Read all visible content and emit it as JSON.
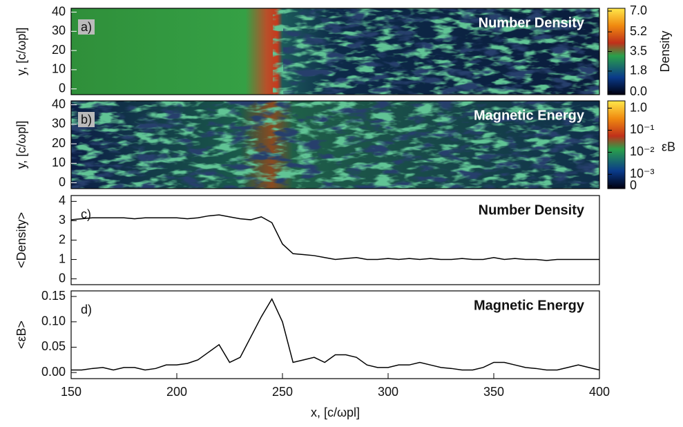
{
  "chart_data": [
    {
      "type": "heatmap",
      "panel_label": "a)",
      "title": "Number Density",
      "ylabel": "y, [c/ωpl]",
      "xlim": [
        150,
        400
      ],
      "ylim": [
        -3,
        42
      ],
      "yticks": [
        0,
        10,
        20,
        30,
        40
      ],
      "colorbar": {
        "label": "Density",
        "lim": [
          0,
          7.0
        ],
        "log": false,
        "ticks": [
          {
            "value": 7.0,
            "label": "7.0"
          },
          {
            "value": 5.2,
            "label": "5.2"
          },
          {
            "value": 3.5,
            "label": "3.5"
          },
          {
            "value": 1.8,
            "label": "1.8"
          },
          {
            "value": 0.0,
            "label": "0.0"
          }
        ]
      }
    },
    {
      "type": "heatmap",
      "panel_label": "b)",
      "title": "Magnetic Energy",
      "ylabel": "y, [c/ωpl]",
      "xlim": [
        150,
        400
      ],
      "ylim": [
        -3,
        42
      ],
      "yticks": [
        0,
        10,
        20,
        30,
        40
      ],
      "colorbar": {
        "label": "εB",
        "lim": [
          0.0003,
          1.6
        ],
        "log": true,
        "ticks": [
          {
            "value": 1.0,
            "label": "1.0"
          },
          {
            "value": 0.1,
            "label": "10⁻¹"
          },
          {
            "value": 0.01,
            "label": "10⁻²"
          },
          {
            "value": 0.001,
            "label": "10⁻³"
          },
          0
        ]
      }
    },
    {
      "type": "line",
      "panel_label": "c)",
      "title": "Number Density",
      "ylabel": "<Density>",
      "color": "#000000",
      "xlim": [
        150,
        400
      ],
      "ylim": [
        -0.3,
        4.3
      ],
      "yticks": [
        0,
        1,
        2,
        3,
        4
      ],
      "x": [
        150,
        155,
        160,
        165,
        170,
        175,
        180,
        185,
        190,
        195,
        200,
        205,
        210,
        215,
        220,
        225,
        230,
        235,
        240,
        245,
        250,
        255,
        260,
        265,
        270,
        275,
        280,
        285,
        290,
        295,
        300,
        305,
        310,
        315,
        320,
        325,
        330,
        335,
        340,
        345,
        350,
        355,
        360,
        365,
        370,
        375,
        380,
        385,
        390,
        395,
        400
      ],
      "values": [
        3.05,
        3.1,
        3.15,
        3.15,
        3.15,
        3.15,
        3.1,
        3.15,
        3.15,
        3.15,
        3.15,
        3.1,
        3.15,
        3.25,
        3.3,
        3.2,
        3.1,
        3.05,
        3.2,
        2.9,
        1.8,
        1.3,
        1.25,
        1.2,
        1.1,
        1.0,
        1.05,
        1.1,
        1.0,
        1.0,
        1.05,
        1.0,
        1.05,
        1.0,
        1.05,
        1.0,
        1.0,
        1.05,
        1.0,
        1.0,
        1.1,
        1.0,
        1.05,
        1.0,
        1.0,
        0.95,
        1.0,
        1.0,
        1.0,
        1.0,
        1.0
      ]
    },
    {
      "type": "line",
      "panel_label": "d)",
      "title": "Magnetic Energy",
      "ylabel": "<εB>",
      "color": "#000000",
      "xlabel": "x, [c/ωpl]",
      "xlim": [
        150,
        400
      ],
      "ylim": [
        -0.012,
        0.161
      ],
      "xticks": [
        150,
        200,
        250,
        300,
        350,
        400
      ],
      "yticks": [
        {
          "value": 0,
          "label": "0.00"
        },
        {
          "value": 0.05,
          "label": "0.05"
        },
        {
          "value": 0.1,
          "label": "0.10"
        },
        {
          "value": 0.15,
          "label": "0.15"
        }
      ],
      "x": [
        150,
        155,
        160,
        165,
        170,
        175,
        180,
        185,
        190,
        195,
        200,
        205,
        210,
        215,
        220,
        225,
        230,
        235,
        240,
        245,
        250,
        255,
        260,
        265,
        270,
        275,
        280,
        285,
        290,
        295,
        300,
        305,
        310,
        315,
        320,
        325,
        330,
        335,
        340,
        345,
        350,
        355,
        360,
        365,
        370,
        375,
        380,
        385,
        390,
        395,
        400
      ],
      "values": [
        0.005,
        0.005,
        0.008,
        0.01,
        0.005,
        0.01,
        0.01,
        0.005,
        0.008,
        0.015,
        0.015,
        0.018,
        0.025,
        0.04,
        0.055,
        0.02,
        0.03,
        0.07,
        0.11,
        0.145,
        0.1,
        0.02,
        0.025,
        0.03,
        0.02,
        0.035,
        0.035,
        0.03,
        0.015,
        0.01,
        0.01,
        0.015,
        0.015,
        0.02,
        0.015,
        0.01,
        0.008,
        0.005,
        0.005,
        0.01,
        0.02,
        0.02,
        0.015,
        0.01,
        0.008,
        0.005,
        0.005,
        0.01,
        0.015,
        0.01,
        0.005
      ]
    }
  ]
}
